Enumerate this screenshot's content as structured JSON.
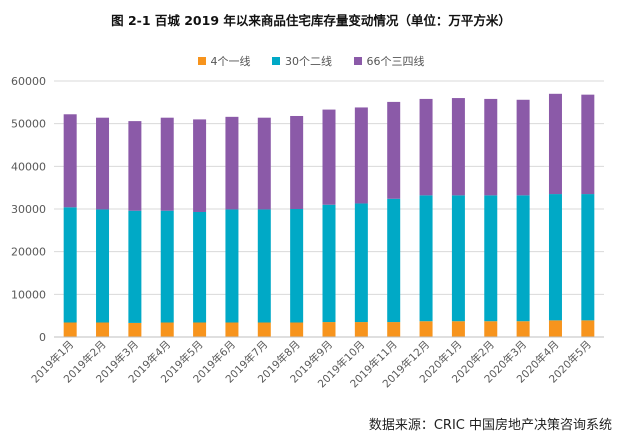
{
  "title": "图 2-1 百城 2019 年以来商品住宅库存量变动情况（单位：万平方米）",
  "source": "数据来源：CRIC 中国房地产决策咨询系统",
  "colors": {
    "series1": "#F7941D",
    "series2": "#00A9C6",
    "series3": "#8B5AA8",
    "grid": "#d9d9d9",
    "axis_text": "#595959"
  },
  "chart_data": {
    "type": "bar",
    "stacked": true,
    "title": "图 2-1 百城 2019 年以来商品住宅库存量变动情况（单位：万平方米）",
    "categories": [
      "2019年1月",
      "2019年2月",
      "2019年3月",
      "2019年4月",
      "2019年5月",
      "2019年6月",
      "2019年7月",
      "2019年8月",
      "2019年9月",
      "2019年10月",
      "2019年11月",
      "2019年12月",
      "2020年1月",
      "2020年2月",
      "2020年3月",
      "2020年4月",
      "2020年5月"
    ],
    "series": [
      {
        "name": "4个一线",
        "values": [
          3400,
          3400,
          3300,
          3400,
          3400,
          3400,
          3400,
          3400,
          3500,
          3500,
          3500,
          3700,
          3700,
          3700,
          3700,
          3900,
          3900
        ]
      },
      {
        "name": "30个二线",
        "values": [
          27000,
          26500,
          26300,
          26200,
          25900,
          26500,
          26500,
          26600,
          27500,
          27800,
          28900,
          29500,
          29500,
          29500,
          29500,
          29600,
          29600
        ]
      },
      {
        "name": "66个三四线",
        "values": [
          21800,
          21500,
          21000,
          21800,
          21700,
          21700,
          21500,
          21800,
          22300,
          22500,
          22700,
          22600,
          22800,
          22600,
          22400,
          23500,
          23300
        ]
      }
    ],
    "yticks": [
      "0",
      "10000",
      "20000",
      "30000",
      "40000",
      "50000",
      "60000"
    ],
    "ylim": [
      0,
      60000
    ],
    "xlabel": "",
    "ylabel": "",
    "legend_position": "top-center",
    "grid": true
  }
}
